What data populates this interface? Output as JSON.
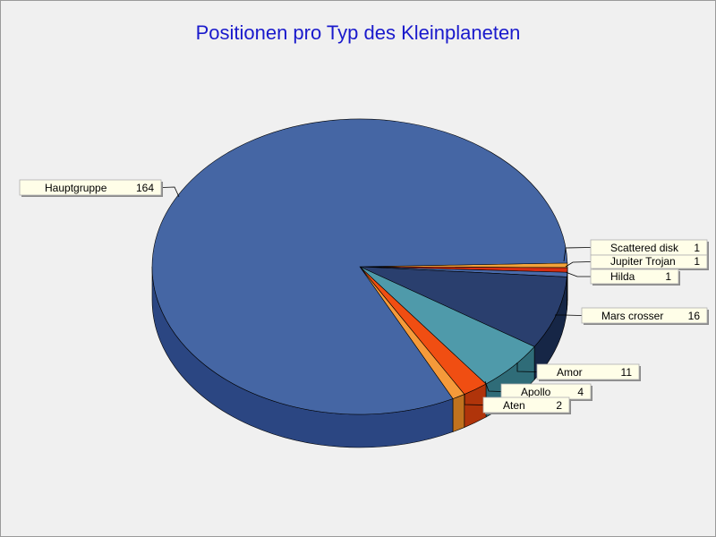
{
  "chart_data": {
    "type": "pie",
    "title": "Positionen pro Typ des Kleinplaneten",
    "slices": [
      {
        "label": "Scattered disk",
        "value": 1,
        "color": "#f3a33a",
        "side": "#b8751e"
      },
      {
        "label": "Jupiter Trojan",
        "value": 1,
        "color": "#d62e12",
        "side": "#8f1e0c"
      },
      {
        "label": "Hilda",
        "value": 1,
        "color": "#4a6aaa",
        "side": "#2c4478"
      },
      {
        "label": "Mars crosser",
        "value": 16,
        "color": "#2a3f6e",
        "side": "#162646"
      },
      {
        "label": "Amor",
        "value": 11,
        "color": "#4f9aaa",
        "side": "#2f6c78"
      },
      {
        "label": "Apollo",
        "value": 4,
        "color": "#f04e12",
        "side": "#b0340a"
      },
      {
        "label": "Aten",
        "value": 2,
        "color": "#f59a3a",
        "side": "#c0721e"
      },
      {
        "label": "Hauptgruppe",
        "value": 164,
        "color": "#4566a4",
        "side": "#2b4682"
      }
    ],
    "legend": "none"
  }
}
